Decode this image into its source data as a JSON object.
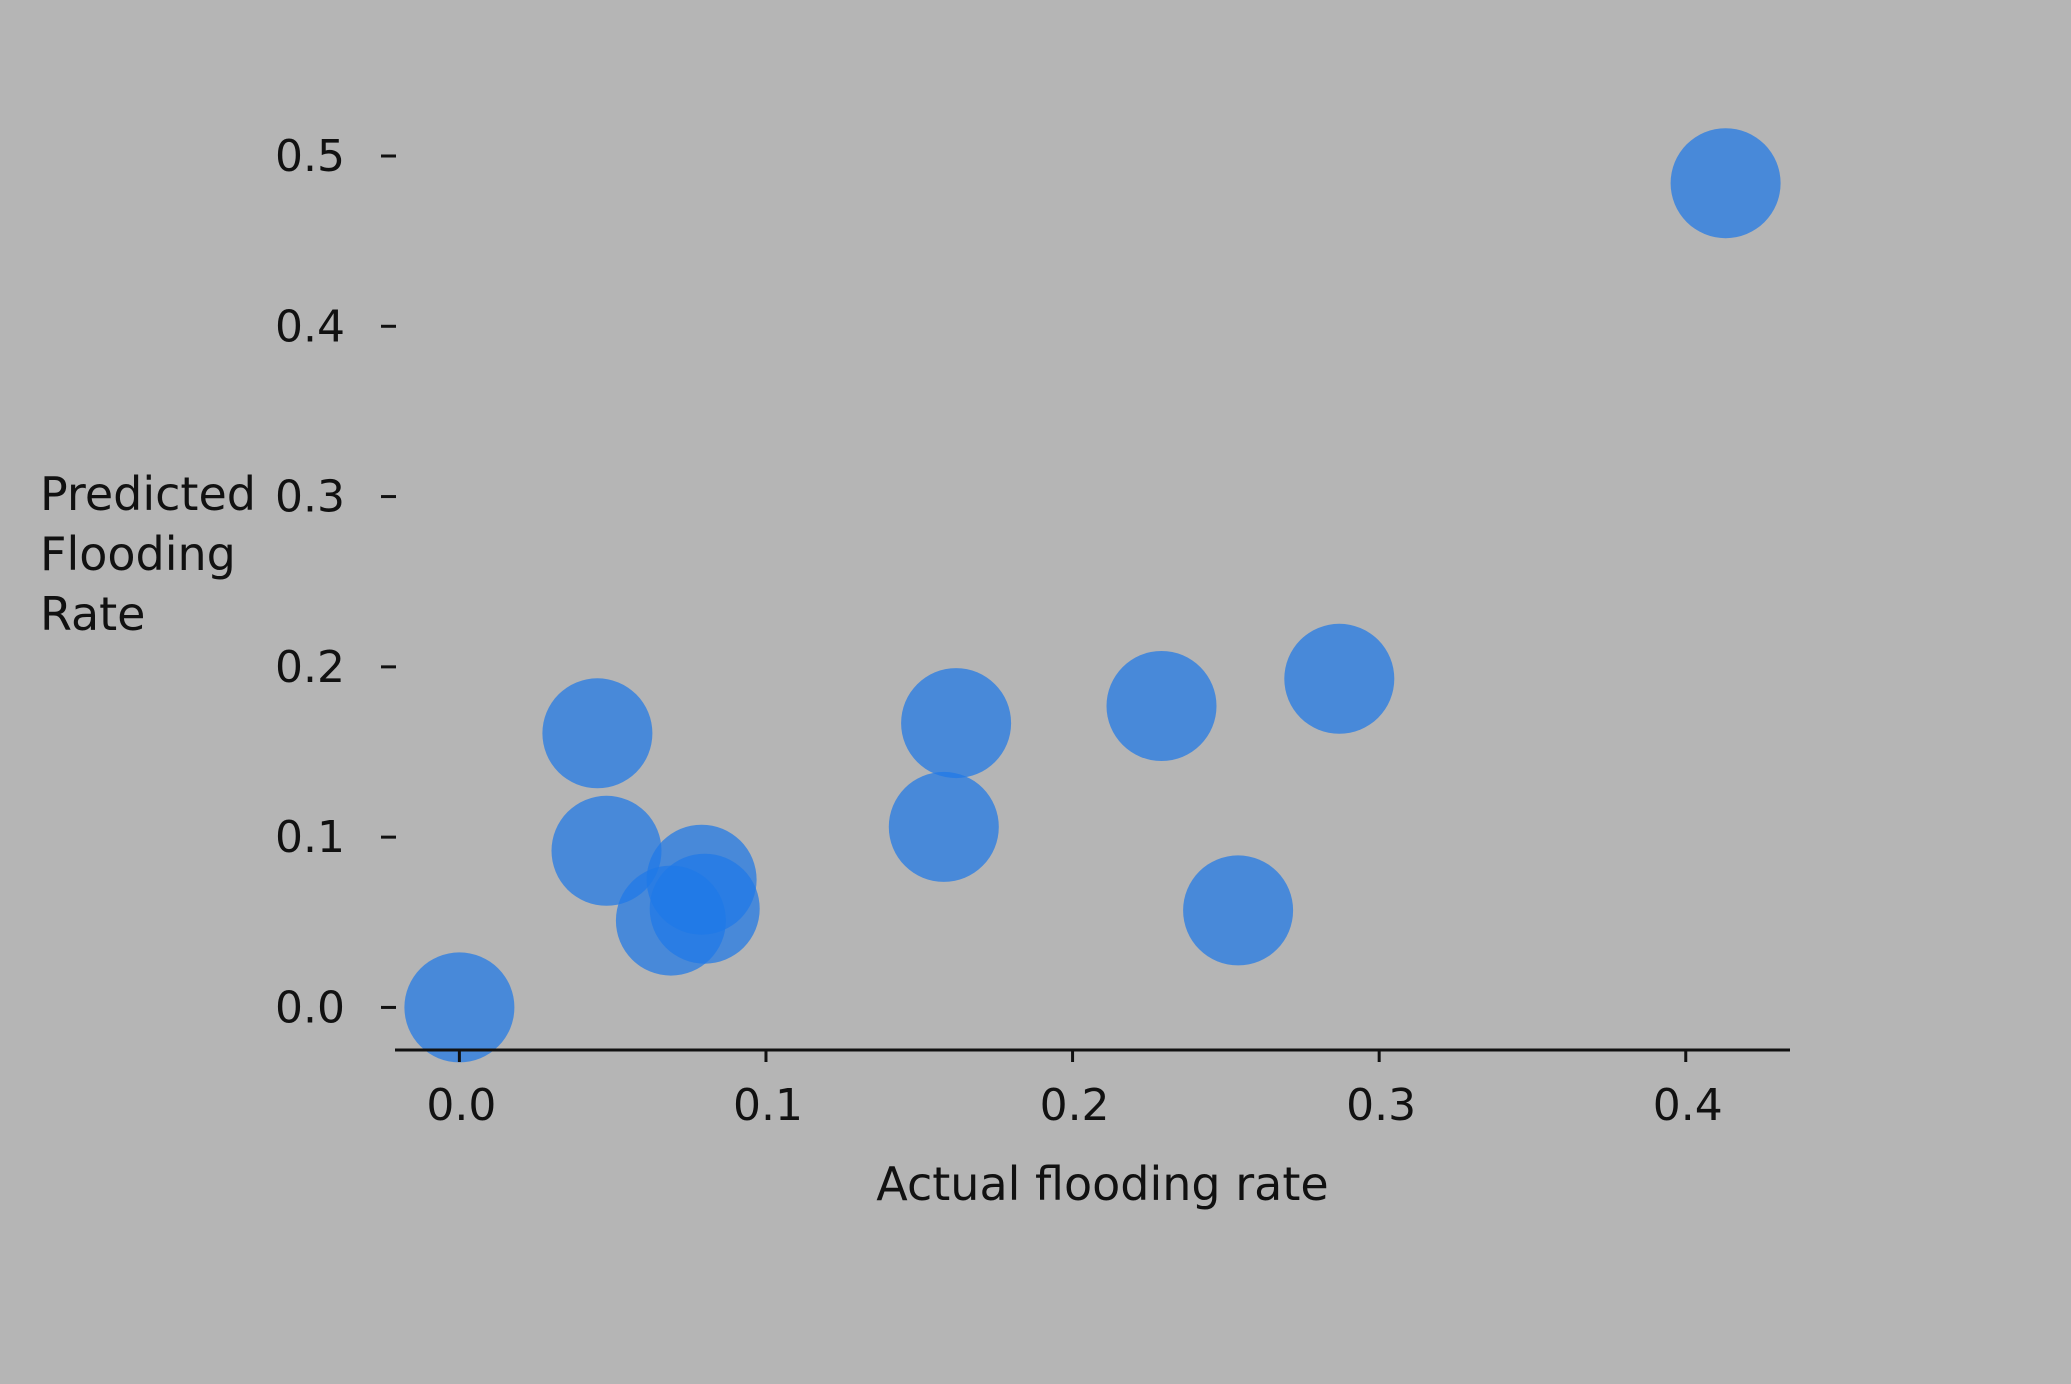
{
  "chart_data": {
    "type": "scatter",
    "title": "",
    "xlabel": "Actual flooding rate",
    "ylabel_lines": [
      "Predicted",
      "Flooding",
      "Rate"
    ],
    "xlim": [
      -0.021,
      0.434
    ],
    "ylim": [
      -0.025,
      0.5
    ],
    "x_ticks": [
      "0.0",
      "0.1",
      "0.2",
      "0.3",
      "0.4"
    ],
    "y_ticks": [
      "0.0",
      "0.1",
      "0.2",
      "0.3",
      "0.4",
      "0.5"
    ],
    "grid": false,
    "legend": "none",
    "colors": {
      "background": "#b5b5b5",
      "point": "#1f78e8",
      "axis": "#111111"
    },
    "points": [
      {
        "x": 0.0,
        "y": 0.0
      },
      {
        "x": 0.045,
        "y": 0.161
      },
      {
        "x": 0.048,
        "y": 0.092
      },
      {
        "x": 0.069,
        "y": 0.051
      },
      {
        "x": 0.079,
        "y": 0.075
      },
      {
        "x": 0.08,
        "y": 0.058
      },
      {
        "x": 0.158,
        "y": 0.106
      },
      {
        "x": 0.162,
        "y": 0.167
      },
      {
        "x": 0.229,
        "y": 0.177
      },
      {
        "x": 0.254,
        "y": 0.057
      },
      {
        "x": 0.287,
        "y": 0.193
      },
      {
        "x": 0.413,
        "y": 0.484
      }
    ]
  }
}
